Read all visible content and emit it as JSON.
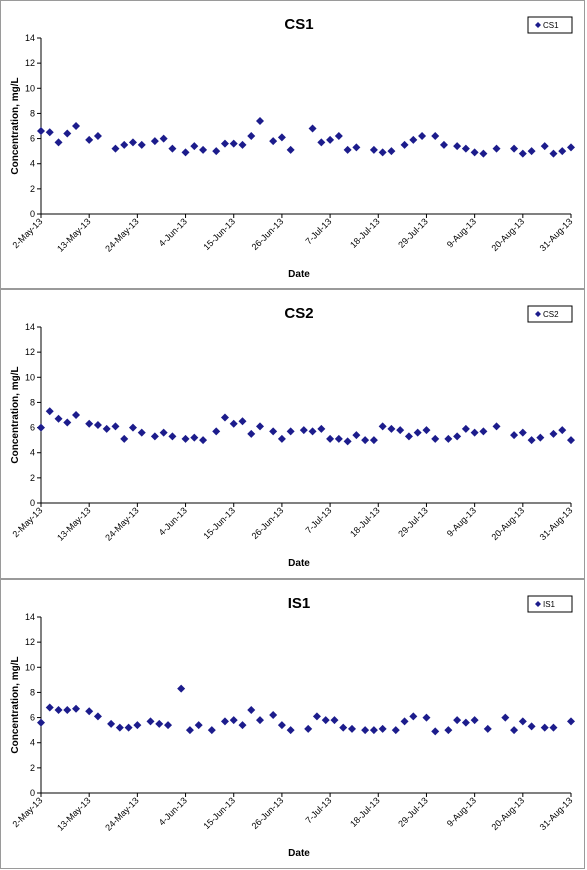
{
  "chart_data": [
    {
      "type": "scatter",
      "title": "CS1",
      "xlabel": "Date",
      "ylabel": "Concentration, mg/L",
      "ylim": [
        0,
        14
      ],
      "yticks": [
        0,
        2,
        4,
        6,
        8,
        10,
        12,
        14
      ],
      "xlim": [
        "2013-05-02",
        "2013-08-31"
      ],
      "xticks": [
        "2-May-13",
        "13-May-13",
        "24-May-13",
        "4-Jun-13",
        "15-Jun-13",
        "26-Jun-13",
        "7-Jul-13",
        "18-Jul-13",
        "29-Jul-13",
        "9-Aug-13",
        "20-Aug-13",
        "31-Aug-13"
      ],
      "legend": "top-right",
      "grid": false,
      "marker_color": "#1c1c8c",
      "series": [
        {
          "name": "CS1",
          "x": [
            "2013-05-02",
            "2013-05-04",
            "2013-05-06",
            "2013-05-08",
            "2013-05-10",
            "2013-05-13",
            "2013-05-15",
            "2013-05-19",
            "2013-05-21",
            "2013-05-23",
            "2013-05-25",
            "2013-05-28",
            "2013-05-30",
            "2013-06-01",
            "2013-06-04",
            "2013-06-06",
            "2013-06-08",
            "2013-06-11",
            "2013-06-13",
            "2013-06-15",
            "2013-06-17",
            "2013-06-19",
            "2013-06-21",
            "2013-06-24",
            "2013-06-26",
            "2013-06-28",
            "2013-07-03",
            "2013-07-05",
            "2013-07-07",
            "2013-07-09",
            "2013-07-11",
            "2013-07-13",
            "2013-07-17",
            "2013-07-19",
            "2013-07-21",
            "2013-07-24",
            "2013-07-26",
            "2013-07-28",
            "2013-07-31",
            "2013-08-02",
            "2013-08-05",
            "2013-08-07",
            "2013-08-09",
            "2013-08-11",
            "2013-08-14",
            "2013-08-18",
            "2013-08-20",
            "2013-08-22",
            "2013-08-25",
            "2013-08-27",
            "2013-08-29",
            "2013-08-31"
          ],
          "y": [
            6.6,
            6.5,
            5.7,
            6.4,
            7.0,
            5.9,
            6.2,
            5.2,
            5.5,
            5.7,
            5.5,
            5.8,
            6.0,
            5.2,
            4.9,
            5.4,
            5.1,
            5.0,
            5.6,
            5.6,
            5.5,
            6.2,
            7.4,
            5.8,
            6.1,
            5.1,
            6.8,
            5.7,
            5.9,
            6.2,
            5.1,
            5.3,
            5.1,
            4.9,
            5.0,
            5.5,
            5.9,
            6.2,
            6.2,
            5.5,
            5.4,
            5.2,
            4.9,
            4.8,
            5.2,
            5.2,
            4.8,
            5.0,
            5.4,
            4.8,
            5.0,
            5.3
          ]
        }
      ]
    },
    {
      "type": "scatter",
      "title": "CS2",
      "xlabel": "Date",
      "ylabel": "Concentration, mg/L",
      "ylim": [
        0,
        14
      ],
      "yticks": [
        0,
        2,
        4,
        6,
        8,
        10,
        12,
        14
      ],
      "xlim": [
        "2013-05-02",
        "2013-08-31"
      ],
      "xticks": [
        "2-May-13",
        "13-May-13",
        "24-May-13",
        "4-Jun-13",
        "15-Jun-13",
        "26-Jun-13",
        "7-Jul-13",
        "18-Jul-13",
        "29-Jul-13",
        "9-Aug-13",
        "20-Aug-13",
        "31-Aug-13"
      ],
      "legend": "top-right",
      "grid": false,
      "marker_color": "#1c1c8c",
      "series": [
        {
          "name": "CS2",
          "x": [
            "2013-05-02",
            "2013-05-04",
            "2013-05-06",
            "2013-05-08",
            "2013-05-10",
            "2013-05-13",
            "2013-05-15",
            "2013-05-17",
            "2013-05-19",
            "2013-05-21",
            "2013-05-23",
            "2013-05-25",
            "2013-05-28",
            "2013-05-30",
            "2013-06-01",
            "2013-06-04",
            "2013-06-06",
            "2013-06-08",
            "2013-06-11",
            "2013-06-13",
            "2013-06-15",
            "2013-06-17",
            "2013-06-19",
            "2013-06-21",
            "2013-06-24",
            "2013-06-26",
            "2013-06-28",
            "2013-07-01",
            "2013-07-03",
            "2013-07-05",
            "2013-07-07",
            "2013-07-09",
            "2013-07-11",
            "2013-07-13",
            "2013-07-15",
            "2013-07-17",
            "2013-07-19",
            "2013-07-21",
            "2013-07-23",
            "2013-07-25",
            "2013-07-27",
            "2013-07-29",
            "2013-07-31",
            "2013-08-03",
            "2013-08-05",
            "2013-08-07",
            "2013-08-09",
            "2013-08-11",
            "2013-08-14",
            "2013-08-18",
            "2013-08-20",
            "2013-08-22",
            "2013-08-24",
            "2013-08-27",
            "2013-08-29",
            "2013-08-31"
          ],
          "y": [
            6.0,
            7.3,
            6.7,
            6.4,
            7.0,
            6.3,
            6.2,
            5.9,
            6.1,
            5.1,
            6.0,
            5.6,
            5.3,
            5.6,
            5.3,
            5.1,
            5.2,
            5.0,
            5.7,
            6.8,
            6.3,
            6.5,
            5.5,
            6.1,
            5.7,
            5.1,
            5.7,
            5.8,
            5.7,
            5.9,
            5.1,
            5.1,
            4.9,
            5.4,
            5.0,
            5.0,
            6.1,
            5.9,
            5.8,
            5.3,
            5.6,
            5.8,
            5.1,
            5.1,
            5.3,
            5.9,
            5.6,
            5.7,
            6.1,
            5.4,
            5.6,
            5.0,
            5.2,
            5.5,
            5.8,
            5.0
          ]
        }
      ]
    },
    {
      "type": "scatter",
      "title": "IS1",
      "xlabel": "Date",
      "ylabel": "Concentration, mg/L",
      "ylim": [
        0,
        14
      ],
      "yticks": [
        0,
        2,
        4,
        6,
        8,
        10,
        12,
        14
      ],
      "xlim": [
        "2013-05-02",
        "2013-08-31"
      ],
      "xticks": [
        "2-May-13",
        "13-May-13",
        "24-May-13",
        "4-Jun-13",
        "15-Jun-13",
        "26-Jun-13",
        "7-Jul-13",
        "18-Jul-13",
        "29-Jul-13",
        "9-Aug-13",
        "20-Aug-13",
        "31-Aug-13"
      ],
      "legend": "top-right",
      "grid": false,
      "marker_color": "#1c1c8c",
      "series": [
        {
          "name": "IS1",
          "x": [
            "2013-05-02",
            "2013-05-04",
            "2013-05-06",
            "2013-05-08",
            "2013-05-10",
            "2013-05-13",
            "2013-05-15",
            "2013-05-18",
            "2013-05-20",
            "2013-05-22",
            "2013-05-24",
            "2013-05-27",
            "2013-05-29",
            "2013-05-31",
            "2013-06-03",
            "2013-06-05",
            "2013-06-07",
            "2013-06-10",
            "2013-06-13",
            "2013-06-15",
            "2013-06-17",
            "2013-06-19",
            "2013-06-21",
            "2013-06-24",
            "2013-06-26",
            "2013-06-28",
            "2013-07-02",
            "2013-07-04",
            "2013-07-06",
            "2013-07-08",
            "2013-07-10",
            "2013-07-12",
            "2013-07-15",
            "2013-07-17",
            "2013-07-19",
            "2013-07-22",
            "2013-07-24",
            "2013-07-26",
            "2013-07-29",
            "2013-07-31",
            "2013-08-03",
            "2013-08-05",
            "2013-08-07",
            "2013-08-09",
            "2013-08-12",
            "2013-08-16",
            "2013-08-18",
            "2013-08-20",
            "2013-08-22",
            "2013-08-25",
            "2013-08-27",
            "2013-08-31"
          ],
          "y": [
            5.6,
            6.8,
            6.6,
            6.6,
            6.7,
            6.5,
            6.1,
            5.5,
            5.2,
            5.2,
            5.4,
            5.7,
            5.5,
            5.4,
            8.3,
            5.0,
            5.4,
            5.0,
            5.7,
            5.8,
            5.4,
            6.6,
            5.8,
            6.2,
            5.4,
            5.0,
            5.1,
            6.1,
            5.8,
            5.8,
            5.2,
            5.1,
            5.0,
            5.0,
            5.1,
            5.0,
            5.7,
            6.1,
            6.0,
            4.9,
            5.0,
            5.8,
            5.6,
            5.8,
            5.1,
            6.0,
            5.0,
            5.7,
            5.3,
            5.2,
            5.2,
            5.7
          ]
        }
      ]
    }
  ]
}
